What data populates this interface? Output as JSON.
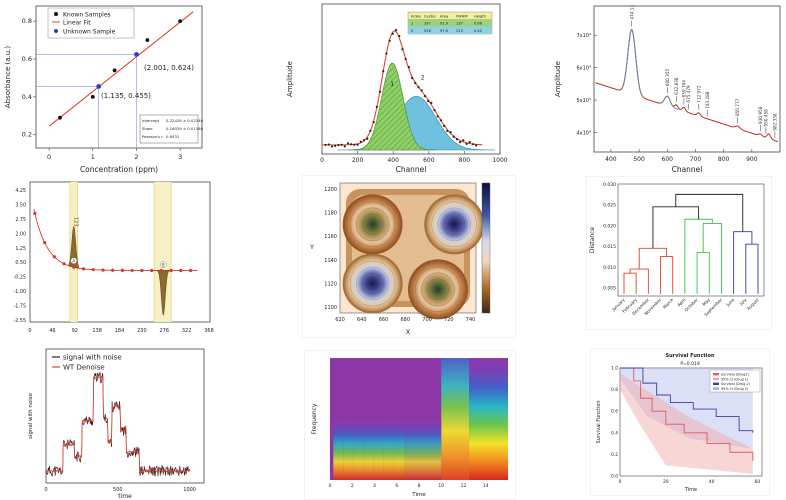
{
  "chart_data": [
    {
      "type": "scatter",
      "panel": "calibration",
      "legend": [
        "Known Samples",
        "Linear Fit",
        "Unknown Sample"
      ],
      "legend_placement": "top-left",
      "xlabel": "Concentration (ppm)",
      "ylabel": "Absorbance (a.u.)",
      "xlim": [
        -0.3,
        3.5
      ],
      "ylim": [
        0.13,
        0.88
      ],
      "xticks": [
        "0",
        "1",
        "2",
        "3"
      ],
      "yticks": [
        "0.2",
        "0.4",
        "0.6",
        "0.8"
      ],
      "known": {
        "x": [
          0.25,
          1.0,
          1.5,
          2.25,
          3.0
        ],
        "y": [
          0.29,
          0.4,
          0.54,
          0.7,
          0.8
        ]
      },
      "fit": {
        "x": [
          0.0,
          3.3
        ],
        "y": [
          0.245,
          0.85
        ]
      },
      "unknown": {
        "x": [
          1.135,
          2.001
        ],
        "y": [
          0.455,
          0.624
        ]
      },
      "annotations": [
        "(2.001,  0.624)",
        "(1.135,  0.455)"
      ],
      "stats_table": {
        "rows": [
          {
            "label": "Intercept",
            "value": "0.22429 ± 0.02346"
          },
          {
            "label": "Slope",
            "value": "0.16029 ± 0.01180"
          },
          {
            "label": "Pearson's r",
            "value": "0.9531"
          }
        ]
      }
    },
    {
      "type": "area",
      "panel": "peak-fit",
      "xlabel": "Channel",
      "ylabel": "Amplitude",
      "xlim": [
        0,
        1000
      ],
      "ylim": [
        0,
        1
      ],
      "xticks": [
        "0",
        "200",
        "400",
        "600",
        "800",
        "1000"
      ],
      "peaks": [
        {
          "name": "1",
          "center": 395,
          "width": 60,
          "height": 0.68,
          "color": "#6fbe4a"
        },
        {
          "name": "2",
          "center": 530,
          "width": 110,
          "height": 0.42,
          "color": "#4db3d6"
        }
      ],
      "peak_labels": [
        "1",
        "2"
      ],
      "table": {
        "header": [
          "Index",
          "Center",
          "Area",
          "FWHM",
          "Height"
        ],
        "rows": [
          [
            "1",
            "397",
            "91.9",
            "137",
            "0.68"
          ],
          [
            "2",
            "526",
            "97.0",
            "215",
            "0.42"
          ]
        ]
      }
    },
    {
      "type": "line",
      "panel": "spectrum",
      "xlabel": "Channel",
      "ylabel": "Amplitude",
      "xlim": [
        340,
        1000
      ],
      "ylim": [
        3.4,
        7.9
      ],
      "xticks": [
        "400",
        "500",
        "600",
        "700",
        "800",
        "900"
      ],
      "yticks": [
        "4x10⁴",
        "5x10⁴",
        "6x10⁴",
        "7x10⁴"
      ],
      "peak_labels": [
        {
          "x": 474,
          "label": "474.11"
        },
        {
          "x": 600,
          "label": "600.355"
        },
        {
          "x": 632,
          "label": "632.838"
        },
        {
          "x": 659,
          "label": "659.794"
        },
        {
          "x": 675,
          "label": "675.479"
        },
        {
          "x": 712,
          "label": "712.972"
        },
        {
          "x": 743,
          "label": "743.288"
        },
        {
          "x": 850,
          "label": "850.777"
        },
        {
          "x": 930,
          "label": "930.958"
        },
        {
          "x": 950,
          "label": "950.458"
        },
        {
          "x": 982,
          "label": "982.358"
        }
      ]
    },
    {
      "type": "scatter",
      "panel": "decay-peaks",
      "xlim": [
        0,
        370
      ],
      "ylim": [
        -2.6,
        4.6
      ],
      "xticks": [
        "0",
        "46",
        "92",
        "138",
        "184",
        "230",
        "276",
        "322",
        "368"
      ],
      "yticks": [
        "4.25",
        "3.50",
        "2.75",
        "2.00",
        "1.25",
        "0.50",
        "-0.25",
        "-1.00",
        "-1.75",
        "-2.55"
      ],
      "highlight_bands": [
        [
          82,
          98
        ],
        [
          255,
          290
        ]
      ],
      "peak_labels": [
        "123",
        "A",
        "B"
      ]
    },
    {
      "type": "heatmap",
      "panel": "contour",
      "xlabel": "X",
      "ylabel": "Y",
      "xlim": [
        620,
        745
      ],
      "ylim": [
        1095,
        1205
      ],
      "xticks": [
        "620",
        "640",
        "660",
        "680",
        "700",
        "720",
        "740"
      ],
      "yticks": [
        "1200",
        "1180",
        "1160",
        "1140",
        "1120",
        "1100"
      ],
      "centers": [
        {
          "x": 725,
          "y": 1170,
          "type": "high"
        },
        {
          "x": 650,
          "y": 1120,
          "type": "high"
        },
        {
          "x": 650,
          "y": 1170,
          "type": "mid"
        },
        {
          "x": 710,
          "y": 1115,
          "type": "mid"
        }
      ]
    },
    {
      "type": "line",
      "panel": "dendrogram",
      "ylabel": "Distance",
      "ylim": [
        0.003,
        0.03
      ],
      "yticks": [
        "0.030",
        "0.025",
        "0.020",
        "0.015",
        "0.010",
        "0.005"
      ],
      "categories": [
        "January",
        "February",
        "December",
        "November",
        "March",
        "April",
        "October",
        "May",
        "September",
        "June",
        "July",
        "August"
      ]
    },
    {
      "type": "line",
      "panel": "denoise",
      "legend": [
        "signal with noise",
        "WT Denoise"
      ],
      "xlabel": "time",
      "ylabel": "signal with noise",
      "xticks": [
        "0",
        "500",
        "1000"
      ]
    },
    {
      "type": "heatmap",
      "panel": "spectrogram",
      "xlabel": "Time",
      "ylabel": "Frequency",
      "xticks": [
        "0",
        "2",
        "4",
        "6",
        "8",
        "10",
        "12",
        "14"
      ]
    },
    {
      "type": "line",
      "panel": "survival",
      "title": "Survival Function",
      "subtitle": "P=0.019",
      "xlabel": "Time",
      "ylabel": "Survival Function",
      "xlim": [
        0,
        62
      ],
      "ylim": [
        0,
        1
      ],
      "xticks": [
        "0",
        "20",
        "40",
        "60"
      ],
      "yticks": [
        "1.0",
        "0.8",
        "0.6",
        "0.4",
        "0.2",
        "0.0"
      ],
      "legend": [
        "Survival (Drug1)",
        "95% CI (Drug 1)",
        "Survival (Drug 2)",
        "95% CI (Drug 2)"
      ]
    }
  ],
  "colors": {
    "fit_red": "#e3432c",
    "green_peak": "#6fbe4a",
    "blue_peak": "#4db3d6",
    "highlight": "#f6f0c4"
  }
}
